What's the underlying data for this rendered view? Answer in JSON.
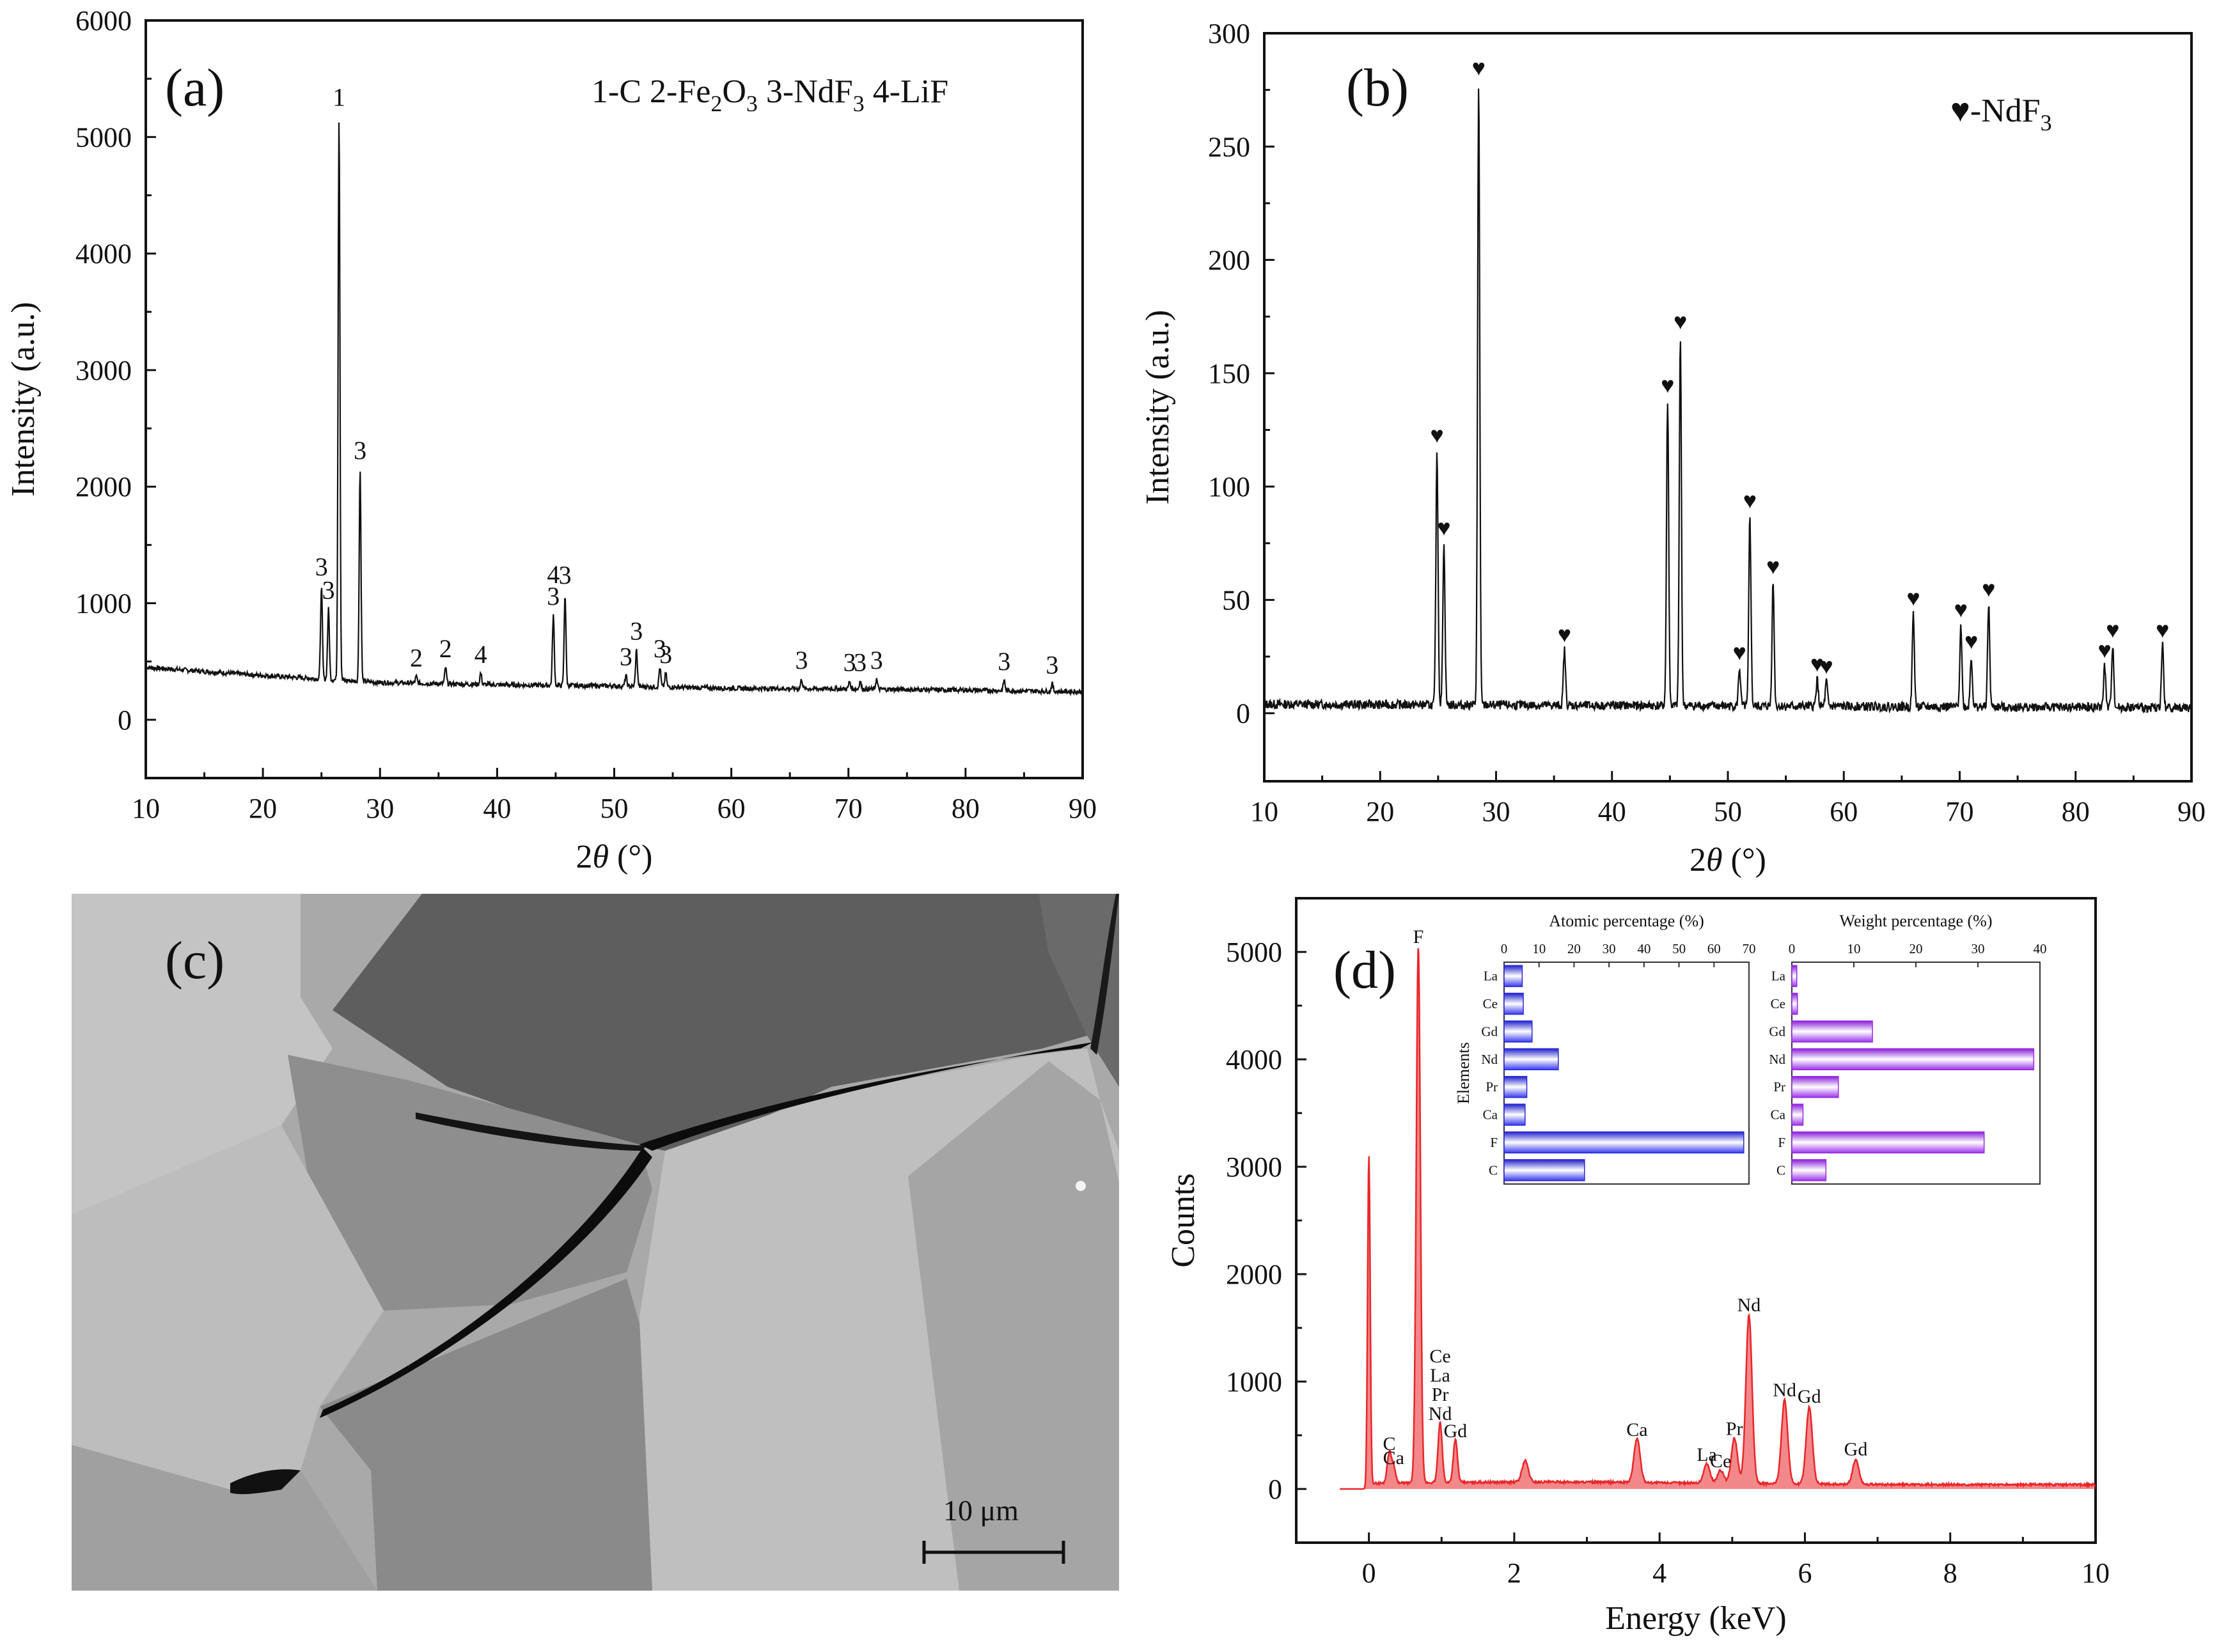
{
  "figure": {
    "title": ""
  },
  "chart_data": [
    {
      "panel": "(a)",
      "type": "line",
      "title": "",
      "legend_text": "1-C 2-Fe2O3 3-NdF3 4-LiF",
      "legend_parts": {
        "a": "1-C 2-Fe",
        "b": "2",
        "c": "O",
        "d": "3",
        "e": " 3-NdF",
        "f": "3",
        "g": " 4-LiF"
      },
      "xlabel": {
        "pre": "2",
        "theta": "θ",
        "post": " (°)"
      },
      "ylabel": "Intensity (a.u.)",
      "xlim": [
        10,
        90
      ],
      "ylim": [
        -500,
        6000
      ],
      "xticks": [
        10,
        20,
        30,
        40,
        50,
        60,
        70,
        80,
        90
      ],
      "yticks": [
        0,
        1000,
        2000,
        3000,
        4000,
        5000,
        6000
      ],
      "baseline": [
        [
          10,
          450
        ],
        [
          20,
          380
        ],
        [
          30,
          320
        ],
        [
          40,
          300
        ],
        [
          50,
          290
        ],
        [
          60,
          270
        ],
        [
          70,
          265
        ],
        [
          80,
          255
        ],
        [
          90,
          240
        ]
      ],
      "peaks": [
        {
          "x": 25.0,
          "y": 1150,
          "label": "3"
        },
        {
          "x": 25.6,
          "y": 950,
          "label": "3"
        },
        {
          "x": 26.5,
          "y": 5180,
          "label": "1"
        },
        {
          "x": 28.3,
          "y": 2150,
          "label": "3"
        },
        {
          "x": 33.1,
          "y": 370,
          "label": "2"
        },
        {
          "x": 35.6,
          "y": 450,
          "label": "2"
        },
        {
          "x": 38.6,
          "y": 400,
          "label": "4"
        },
        {
          "x": 44.8,
          "y": 900,
          "label": "4 3"
        },
        {
          "x": 45.8,
          "y": 1080,
          "label": "3"
        },
        {
          "x": 51.0,
          "y": 380,
          "label": "3"
        },
        {
          "x": 51.9,
          "y": 600,
          "label": "3"
        },
        {
          "x": 53.9,
          "y": 450,
          "label": "3"
        },
        {
          "x": 54.4,
          "y": 400,
          "label": "3"
        },
        {
          "x": 66.0,
          "y": 350,
          "label": "3"
        },
        {
          "x": 70.1,
          "y": 330,
          "label": "3"
        },
        {
          "x": 71.0,
          "y": 330,
          "label": "3"
        },
        {
          "x": 72.4,
          "y": 350,
          "label": "3"
        },
        {
          "x": 83.3,
          "y": 340,
          "label": "3"
        },
        {
          "x": 87.4,
          "y": 310,
          "label": "3"
        }
      ]
    },
    {
      "panel": "(b)",
      "type": "line",
      "title": "",
      "legend_text": "♥-NdF3",
      "legend_parts": {
        "sym": "♥",
        "main": "-NdF",
        "sub": "3"
      },
      "xlabel": {
        "pre": "2",
        "theta": "θ",
        "post": " (°)"
      },
      "ylabel": "Intensity (a.u.)",
      "xlim": [
        10,
        90
      ],
      "ylim": [
        -30,
        300
      ],
      "xticks": [
        10,
        20,
        30,
        40,
        50,
        60,
        70,
        80,
        90
      ],
      "yticks": [
        0,
        50,
        100,
        150,
        200,
        250,
        300
      ],
      "marker": "♥",
      "peaks": [
        {
          "x": 24.9,
          "y": 116
        },
        {
          "x": 25.5,
          "y": 75
        },
        {
          "x": 28.5,
          "y": 278
        },
        {
          "x": 35.9,
          "y": 28
        },
        {
          "x": 44.8,
          "y": 138
        },
        {
          "x": 45.9,
          "y": 166
        },
        {
          "x": 51.0,
          "y": 20
        },
        {
          "x": 51.9,
          "y": 87
        },
        {
          "x": 53.9,
          "y": 58
        },
        {
          "x": 57.7,
          "y": 15
        },
        {
          "x": 58.5,
          "y": 14
        },
        {
          "x": 66.0,
          "y": 44
        },
        {
          "x": 70.1,
          "y": 39
        },
        {
          "x": 71.0,
          "y": 25
        },
        {
          "x": 72.5,
          "y": 48
        },
        {
          "x": 82.5,
          "y": 21
        },
        {
          "x": 83.2,
          "y": 30
        },
        {
          "x": 87.5,
          "y": 30
        }
      ]
    },
    {
      "panel": "(d)",
      "type": "area",
      "title": "",
      "xlabel": "Energy (keV)",
      "ylabel": "Counts",
      "xlim": [
        -1,
        10
      ],
      "ylim": [
        -500,
        5500
      ],
      "xticks": [
        0,
        2,
        4,
        6,
        8,
        10
      ],
      "yticks": [
        0,
        1000,
        2000,
        3000,
        4000,
        5000
      ],
      "color": "#e8272a",
      "peaks": [
        {
          "x": 0.0,
          "y": 3050,
          "label": ""
        },
        {
          "x": 0.28,
          "y": 280,
          "label": "C"
        },
        {
          "x": 0.34,
          "y": 150,
          "label": "Ca"
        },
        {
          "x": 0.68,
          "y": 5000,
          "label": "F"
        },
        {
          "x": 0.98,
          "y": 560,
          "label": "Ce La Pr Nd"
        },
        {
          "x": 1.19,
          "y": 400,
          "label": "Gd"
        },
        {
          "x": 2.15,
          "y": 200,
          "label": ""
        },
        {
          "x": 3.69,
          "y": 410,
          "label": "Ca"
        },
        {
          "x": 4.65,
          "y": 180,
          "label": "La"
        },
        {
          "x": 4.84,
          "y": 120,
          "label": "Ce"
        },
        {
          "x": 5.03,
          "y": 420,
          "label": "Pr"
        },
        {
          "x": 5.23,
          "y": 1570,
          "label": "Nd"
        },
        {
          "x": 5.72,
          "y": 780,
          "label": "Nd"
        },
        {
          "x": 6.06,
          "y": 720,
          "label": "Gd"
        },
        {
          "x": 6.7,
          "y": 230,
          "label": "Gd"
        }
      ],
      "label_positions": {
        "Ce La Pr Nd": [
          "Ce",
          "La",
          "Pr",
          "Nd"
        ]
      },
      "insets": [
        {
          "title": "Atomic percentage (%)",
          "ylabel": "Elements",
          "xlim": [
            0,
            70
          ],
          "xticks": [
            0,
            10,
            20,
            30,
            40,
            50,
            60,
            70
          ],
          "categories": [
            "La",
            "Ce",
            "Gd",
            "Nd",
            "Pr",
            "Ca",
            "F",
            "C"
          ],
          "values": [
            5.2,
            5.5,
            8.0,
            15.5,
            6.5,
            6.0,
            68.5,
            23.0
          ],
          "color": "#2a2ad8"
        },
        {
          "title": "Weight percentage (%)",
          "ylabel": "",
          "xlim": [
            0,
            40
          ],
          "xticks": [
            0,
            10,
            20,
            30,
            40
          ],
          "categories": [
            "La",
            "Ce",
            "Gd",
            "Nd",
            "Pr",
            "Ca",
            "F",
            "C"
          ],
          "values": [
            0.8,
            0.9,
            13.0,
            39.0,
            7.5,
            1.8,
            31.0,
            5.5
          ],
          "color": "#9a2be0"
        }
      ]
    }
  ],
  "sem_image": {
    "panel": "(c)",
    "scale_bar": "10 μm"
  }
}
